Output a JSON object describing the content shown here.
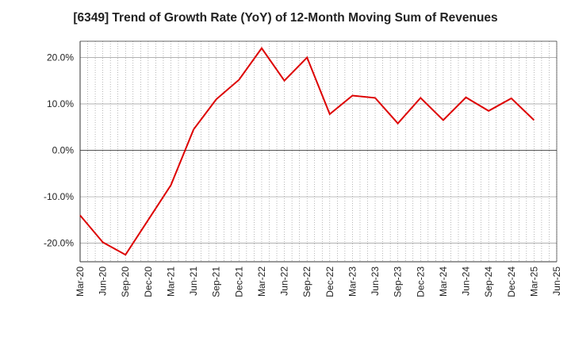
{
  "chart_data": {
    "type": "line",
    "title": "[6349]  Trend of Growth Rate (YoY) of 12-Month Moving Sum of Revenues",
    "xlabel": "",
    "ylabel": "",
    "x_ticks": [
      "Mar-20",
      "Jun-20",
      "Sep-20",
      "Dec-20",
      "Mar-21",
      "Jun-21",
      "Sep-21",
      "Dec-21",
      "Mar-22",
      "Jun-22",
      "Sep-22",
      "Dec-22",
      "Mar-23",
      "Jun-23",
      "Sep-23",
      "Dec-23",
      "Mar-24",
      "Jun-24",
      "Sep-24",
      "Dec-24",
      "Mar-25",
      "Jun-25"
    ],
    "y_ticks": [
      "20.0%",
      "10.0%",
      "0.0%",
      "-10.0%",
      "-20.0%"
    ],
    "y_tick_values": [
      20,
      10,
      0,
      -10,
      -20
    ],
    "ylim": [
      -24,
      23.5
    ],
    "grid": true,
    "series": [
      {
        "color": "#dd0000",
        "points": [
          {
            "x": "Mar-20",
            "y": -14.0
          },
          {
            "x": "Jun-20",
            "y": -19.8
          },
          {
            "x": "Sep-20",
            "y": -22.5
          },
          {
            "x": "Dec-20",
            "y": -15.0
          },
          {
            "x": "Mar-21",
            "y": -7.5
          },
          {
            "x": "Jun-21",
            "y": 4.5
          },
          {
            "x": "Sep-21",
            "y": 11.0
          },
          {
            "x": "Dec-21",
            "y": 15.2
          },
          {
            "x": "Mar-22",
            "y": 22.0
          },
          {
            "x": "Jun-22",
            "y": 15.0
          },
          {
            "x": "Sep-22",
            "y": 20.0
          },
          {
            "x": "Dec-22",
            "y": 7.8
          },
          {
            "x": "Mar-23",
            "y": 11.8
          },
          {
            "x": "Jun-23",
            "y": 11.3
          },
          {
            "x": "Sep-23",
            "y": 5.8
          },
          {
            "x": "Dec-23",
            "y": 11.3
          },
          {
            "x": "Mar-24",
            "y": 6.5
          },
          {
            "x": "Jun-24",
            "y": 11.4
          },
          {
            "x": "Sep-24",
            "y": 8.5
          },
          {
            "x": "Dec-24",
            "y": 11.2
          },
          {
            "x": "Mar-25",
            "y": 6.5
          }
        ]
      }
    ]
  }
}
